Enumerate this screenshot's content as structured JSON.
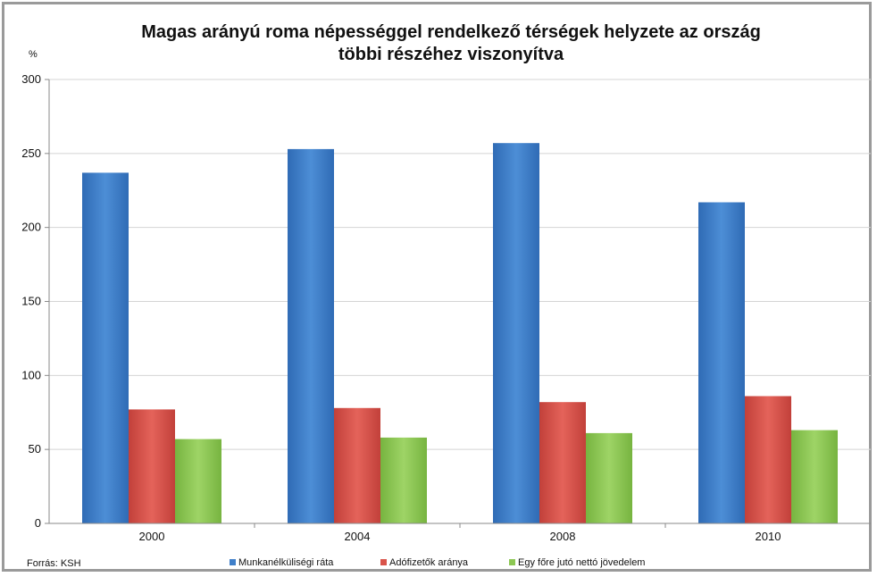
{
  "chart_data": {
    "type": "bar",
    "title_line1": "Magas arányú roma népességgel rendelkező térségek helyzete az ország",
    "title_line2": "többi részéhez viszonyítva",
    "ylabel": "%",
    "xlabel": "",
    "ylim": [
      0,
      300
    ],
    "yticks": [
      0,
      50,
      100,
      150,
      200,
      250,
      300
    ],
    "categories": [
      "2000",
      "2004",
      "2008",
      "2010"
    ],
    "grid": true,
    "legend_position": "bottom",
    "series": [
      {
        "name": "Munkanélküliségi ráta",
        "color": "#3f7fc9",
        "values": [
          237,
          253,
          257,
          217
        ]
      },
      {
        "name": "Adófizetők aránya",
        "color": "#d9534a",
        "values": [
          77,
          78,
          82,
          86
        ]
      },
      {
        "name": "Egy főre jutó nettó jövedelem",
        "color": "#8cc753",
        "values": [
          57,
          58,
          61,
          63
        ]
      }
    ]
  },
  "footer": {
    "source": "Forrás: KSH"
  }
}
